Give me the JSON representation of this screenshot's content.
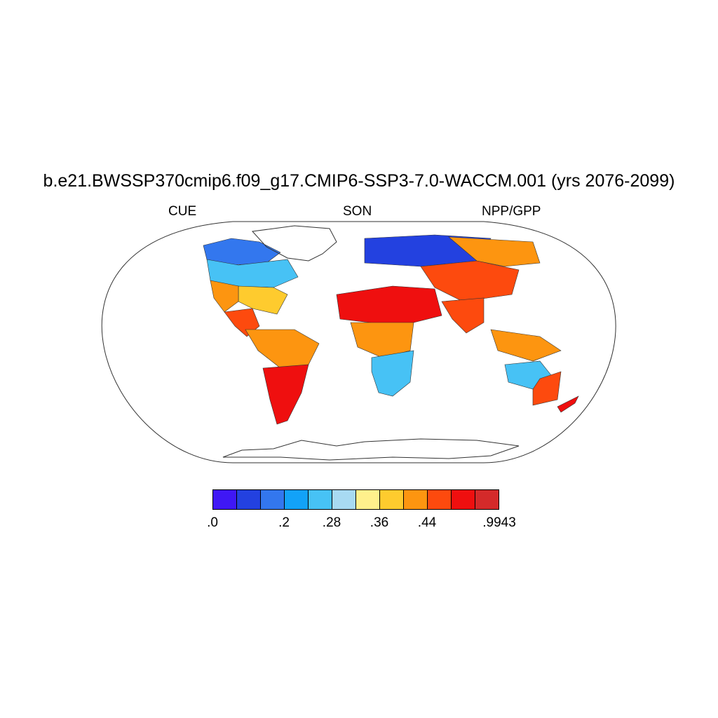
{
  "title": "b.e21.BWSSP370cmip6.f09_g17.CMIP6-SSP3-7.0-WACCM.001 (yrs 2076-2099)",
  "left_label": "CUE",
  "center_label": "SON",
  "right_label": "NPP/GPP",
  "projection": "Robinson",
  "colorbar": {
    "colors": [
      "#3f17f5",
      "#2341e0",
      "#3377ee",
      "#12a2f8",
      "#47c2f5",
      "#a8daf2",
      "#fff08c",
      "#fecb2e",
      "#fd9510",
      "#fd4a0e",
      "#ef0f0f",
      "#d42a2a"
    ],
    "tick_labels": [
      ".0",
      ".2",
      ".28",
      ".36",
      ".44",
      ".9943"
    ]
  },
  "map_regions": [
    {
      "name": "Arctic Canada",
      "color": "#3377ee"
    },
    {
      "name": "Canada",
      "color": "#47c2f5"
    },
    {
      "name": "Eastern United States",
      "color": "#fecb2e"
    },
    {
      "name": "Western United States",
      "color": "#fd9510"
    },
    {
      "name": "Mexico and Central America",
      "color": "#fd4a0e"
    },
    {
      "name": "Amazon",
      "color": "#fd9510"
    },
    {
      "name": "Southern South America",
      "color": "#ef0f0f"
    },
    {
      "name": "Northern Eurasia",
      "color": "#2341e0"
    },
    {
      "name": "Eastern Siberia",
      "color": "#fd9510"
    },
    {
      "name": "Central Asia",
      "color": "#fd4a0e"
    },
    {
      "name": "Sahara and Arabia",
      "color": "#ef0f0f"
    },
    {
      "name": "Central Africa",
      "color": "#fd9510"
    },
    {
      "name": "Southern Africa",
      "color": "#47c2f5"
    },
    {
      "name": "South Asia",
      "color": "#fd4a0e"
    },
    {
      "name": "Maritime Southeast Asia",
      "color": "#fd9510"
    },
    {
      "name": "Interior Australia",
      "color": "#47c2f5"
    },
    {
      "name": "Coastal Australia",
      "color": "#fd4a0e"
    },
    {
      "name": "New Zealand",
      "color": "#ef0f0f"
    }
  ]
}
